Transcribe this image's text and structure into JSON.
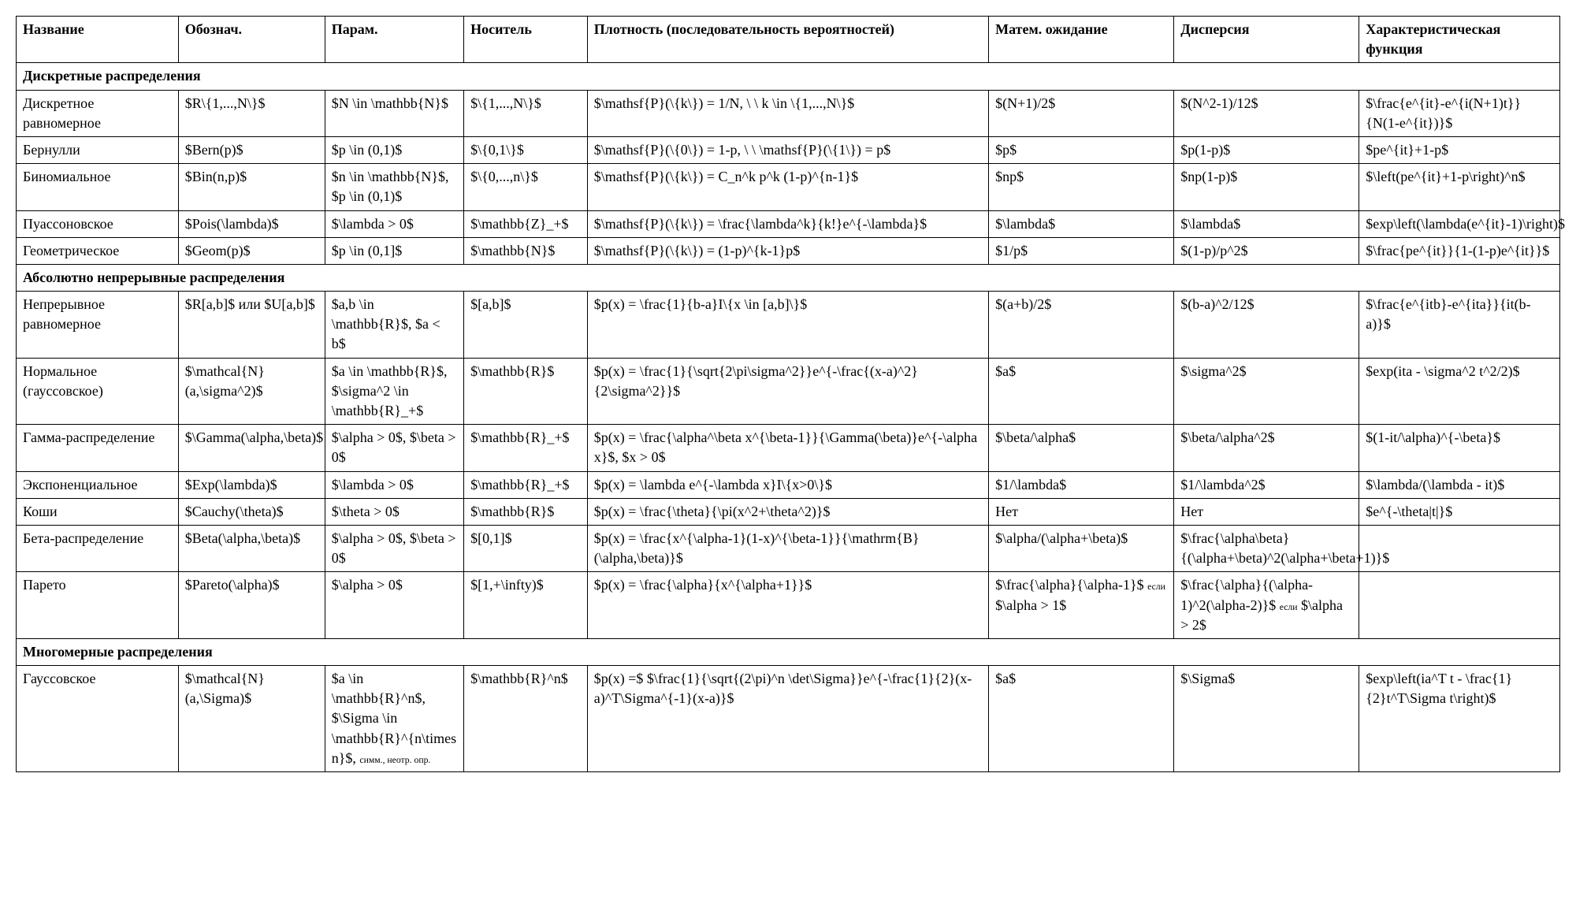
{
  "headers": {
    "name": "Название",
    "notation": "Обознач.",
    "param": "Парам.",
    "carrier": "Носитель",
    "density": "Плотность (последовательность вероятностей)",
    "mean": "Матем. ожидание",
    "variance": "Дисперсия",
    "char": "Характерис­тическая функция"
  },
  "sections": [
    {
      "title": "Дискретные распределения",
      "rows": [
        {
          "name": "Дискретное равномерное",
          "notation": "$R\\{1,...,N\\}$",
          "param": "$N \\in \\mathbb{N}$",
          "carrier": "$\\{1,...,N\\}$",
          "density": "$\\mathsf{P}(\\{k\\}) = 1/N, \\ \\ k \\in \\{1,...,N\\}$",
          "mean": "$(N+1)/2$",
          "variance": "$(N^2-1)/12$",
          "char": "$\\frac{e^{it}-e^{i(N+1)t}}{N(1-e^{it})}$"
        },
        {
          "name": "Бернулли",
          "notation": "$Bern(p)$",
          "param": "$p \\in (0,1)$",
          "carrier": "$\\{0,1\\}$",
          "density": "$\\mathsf{P}(\\{0\\}) = 1-p, \\ \\ \\mathsf{P}(\\{1\\}) = p$",
          "mean": "$p$",
          "variance": "$p(1-p)$",
          "char": "$pe^{it}+1-p$"
        },
        {
          "name": "Биномиальное",
          "notation": "$Bin(n,p)$",
          "param": "$n \\in \\mathbb{N}$, $p \\in (0,1)$",
          "carrier": "$\\{0,...,n\\}$",
          "density": "$\\mathsf{P}(\\{k\\}) = C_n^k p^k (1-p)^{n-1}$",
          "mean": "$np$",
          "variance": "$np(1-p)$",
          "char": "$\\left(pe^{it}+1-p\\right)^n$"
        },
        {
          "name": "Пуассоновское",
          "notation": "$Pois(\\lambda)$",
          "param": "$\\lambda > 0$",
          "carrier": "$\\mathbb{Z}_+$",
          "density": "$\\mathsf{P}(\\{k\\}) = \\frac{\\lambda^k}{k!}e^{-\\lambda}$",
          "mean": "$\\lambda$",
          "variance": "$\\lambda$",
          "char": "$exp\\left(\\lambda(e^{it}-1)\\right)$"
        },
        {
          "name": "Геометрическое",
          "notation": "$Geom(p)$",
          "param": "$p \\in (0,1]$",
          "carrier": "$\\mathbb{N}$",
          "density": "$\\mathsf{P}(\\{k\\}) = (1-p)^{k-1}p$",
          "mean": "$1/p$",
          "variance": "$(1-p)/p^2$",
          "char": "$\\frac{pe^{it}}{1-(1-p)e^{it}}$"
        }
      ]
    },
    {
      "title": "Абсолютно непрерывные распределения",
      "rows": [
        {
          "name": "Непрерывное равномерное",
          "notation": "$R[a,b]$ или $U[a,b]$",
          "param": "$a,b \\in \\mathbb{R}$, $a < b$",
          "carrier": "$[a,b]$",
          "density": "$p(x) = \\frac{1}{b-a}I\\{x \\in [a,b]\\}$",
          "mean": "$(a+b)/2$",
          "variance": "$(b-a)^2/12$",
          "char": "$\\frac{e^{itb}-e^{ita}}{it(b-a)}$"
        },
        {
          "name": "Нормальное (гауссовское)",
          "notation": "$\\mathcal{N}(a,\\sigma^2)$",
          "param": "$a \\in \\mathbb{R}$, $\\sigma^2 \\in \\mathbb{R}_+$",
          "carrier": "$\\mathbb{R}$",
          "density": "$p(x) = \\frac{1}{\\sqrt{2\\pi\\sigma^2}}e^{-\\frac{(x-a)^2}{2\\sigma^2}}$",
          "mean": "$a$",
          "variance": "$\\sigma^2$",
          "char": "$exp(ita - \\sigma^2 t^2/2)$"
        },
        {
          "name": "Гамма-распределение",
          "notation": "$\\Gamma(\\alpha,\\beta)$",
          "param": "$\\alpha > 0$, $\\beta > 0$",
          "carrier": "$\\mathbb{R}_+$",
          "density": "$p(x) = \\frac{\\alpha^\\beta x^{\\beta-1}}{\\Gamma(\\beta)}e^{-\\alpha x}$, $x > 0$",
          "mean": "$\\beta/\\alpha$",
          "variance": "$\\beta/\\alpha^2$",
          "char": "$(1-it/\\alpha)^{-\\beta}$"
        },
        {
          "name": "Экспоненци­альное",
          "notation": "$Exp(\\lambda)$",
          "param": "$\\lambda > 0$",
          "carrier": "$\\mathbb{R}_+$",
          "density": "$p(x) = \\lambda e^{-\\lambda x}I\\{x>0\\}$",
          "mean": "$1/\\lambda$",
          "variance": "$1/\\lambda^2$",
          "char": "$\\lambda/(\\lambda - it)$"
        },
        {
          "name": "Коши",
          "notation": "$Cauchy(\\theta)$",
          "param": "$\\theta > 0$",
          "carrier": "$\\mathbb{R}$",
          "density": "$p(x) = \\frac{\\theta}{\\pi(x^2+\\theta^2)}$",
          "mean": "Нет",
          "variance": "Нет",
          "char": "$e^{-\\theta|t|}$"
        },
        {
          "name": "Бета-распределение",
          "notation": "$Beta(\\alpha,\\beta)$",
          "param": "$\\alpha > 0$, $\\beta > 0$",
          "carrier": "$[0,1]$",
          "density": "$p(x) = \\frac{x^{\\alpha-1}(1-x)^{\\beta-1}}{\\mathrm{B}(\\alpha,\\beta)}$",
          "mean": "$\\alpha/(\\alpha+\\beta)$",
          "variance": "$\\frac{\\alpha\\beta}{(\\alpha+\\beta)^2(\\alpha+\\beta+1)}$",
          "char": ""
        },
        {
          "name": "Парето",
          "notation": "$Pareto(\\alpha)$",
          "param": "$\\alpha > 0$",
          "carrier": "$[1,+\\infty)$",
          "density": "$p(x) = \\frac{\\alpha}{x^{\\alpha+1}}$",
          "mean": "$\\frac{\\alpha}{\\alpha-1}$ <span class=\"small\">если</span> $\\alpha > 1$",
          "variance": "$\\frac{\\alpha}{(\\alpha-1)^2(\\alpha-2)}$ <span class=\"small\">если</span> $\\alpha > 2$",
          "char": ""
        }
      ]
    },
    {
      "title": "Многомерные распределения",
      "rows": [
        {
          "name": "Гауссовское",
          "notation": "$\\mathcal{N}(a,\\Sigma)$",
          "param": "$a \\in \\mathbb{R}^n$, $\\Sigma \\in \\mathbb{R}^{n\\times n}$, <span class=\"small\">симм., неотр. опр.</span>",
          "carrier": "$\\mathbb{R}^n$",
          "density": "$p(x) =$ $\\frac{1}{\\sqrt{(2\\pi)^n \\det\\Sigma}}e^{-\\frac{1}{2}(x-a)^T\\Sigma^{-1}(x-a)}$",
          "mean": "$a$",
          "variance": "$\\Sigma$",
          "char": "$exp\\left(ia^T t - \\frac{1}{2}t^T\\Sigma t\\right)$"
        }
      ]
    }
  ]
}
